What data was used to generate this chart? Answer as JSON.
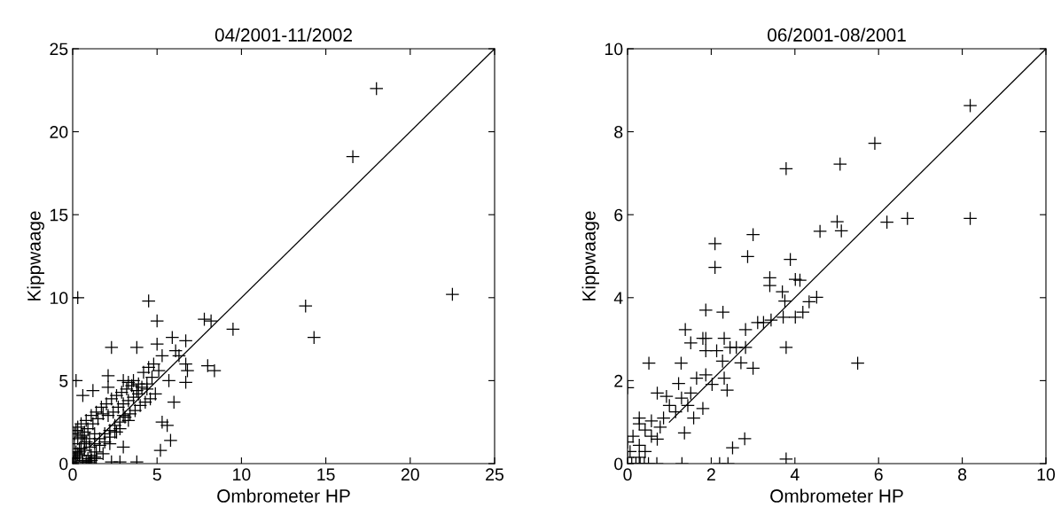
{
  "chart_data": [
    {
      "type": "scatter",
      "title": "04/2001-11/2002",
      "xlabel": "Ombrometer HP",
      "ylabel": "Kippwaage",
      "xlim": [
        0,
        25
      ],
      "ylim": [
        0,
        25
      ],
      "xticks": [
        0,
        5,
        10,
        15,
        20,
        25
      ],
      "yticks": [
        0,
        5,
        10,
        15,
        20,
        25
      ],
      "grid": false,
      "legend": false,
      "series": [
        {
          "marker": "cross",
          "color": "#000000",
          "x": [
            18,
            16.6,
            22.5,
            0.3,
            4.5,
            13.8,
            14.3,
            9.5,
            7.8,
            8.2,
            5,
            2.3,
            3.8,
            5,
            5.9,
            6.7,
            6.1,
            6.3,
            8,
            8.4,
            6.7,
            6.8,
            6.7,
            5.7,
            6,
            1.2,
            0.6,
            5.3,
            5.6,
            5.8,
            5.2,
            3.8,
            2.3,
            2.8,
            3.0,
            0.2,
            2.1,
            2.1,
            3.0,
            3.3,
            3.6,
            3.9,
            4.2,
            4.5,
            4.8,
            5.1,
            4.9,
            4.6,
            4.3,
            4.0,
            3.7,
            3.4,
            3.1,
            2.8,
            2.5,
            2.2,
            1.9,
            1.6,
            1.3,
            1.0,
            0.7,
            0.4,
            0.1,
            0.2,
            0.5,
            0.8,
            1.1,
            1.4,
            1.7,
            2.0,
            2.3,
            2.6,
            2.9,
            3.2,
            3.5,
            3.8,
            4.1,
            4.4,
            4.7,
            0.1,
            0.3,
            0.6,
            0.9,
            1.2,
            1.5,
            1.8,
            2.1,
            2.4,
            2.7,
            3.0,
            3.3,
            3.6,
            3.9,
            0.2,
            0.4,
            0.7,
            1.0,
            1.3,
            1.6,
            1.9,
            2.2,
            2.5,
            2.8,
            0.1,
            0.3,
            0.5,
            0.8,
            1.1,
            1.4,
            0.1,
            0.3,
            0.5,
            0.7,
            0.9,
            1.1,
            1.3,
            0.0,
            0.2,
            0.4,
            0.6,
            0.8,
            1.0,
            0.2,
            0.6,
            1.0,
            1.4,
            1.8,
            2.2,
            2.6,
            3.0,
            4.4,
            5.3,
            3.3
          ],
          "values": [
            22.6,
            18.5,
            10.2,
            10,
            9.8,
            9.5,
            7.6,
            8.1,
            8.7,
            8.6,
            8.6,
            7.0,
            7.0,
            7.2,
            7.6,
            7.4,
            6.8,
            6.5,
            5.9,
            5.6,
            6.0,
            5.6,
            4.9,
            5.0,
            3.7,
            4.4,
            4.1,
            2.5,
            2.3,
            1.4,
            0.8,
            0.1,
            0.1,
            0.1,
            2.9,
            5.0,
            4.6,
            5.3,
            5.0,
            4.9,
            5.0,
            4.8,
            5.5,
            5.8,
            6.0,
            5.6,
            4.2,
            3.9,
            3.7,
            3.5,
            3.2,
            3.0,
            2.8,
            2.5,
            2.3,
            2.0,
            1.8,
            1.5,
            1.2,
            1.0,
            0.8,
            0.5,
            0.3,
            2.0,
            2.4,
            2.6,
            2.9,
            3.1,
            3.4,
            3.6,
            3.9,
            4.1,
            4.3,
            4.5,
            4.7,
            4.4,
            4.6,
            4.8,
            5.2,
            1.2,
            1.5,
            1.7,
            2.1,
            2.4,
            2.7,
            3.0,
            2.9,
            3.1,
            3.4,
            3.6,
            3.8,
            4.0,
            4.2,
            0.7,
            0.9,
            1.2,
            1.5,
            1.8,
            1.1,
            1.3,
            1.6,
            1.9,
            2.1,
            0.4,
            0.6,
            0.9,
            1.3,
            0.5,
            0.7,
            1.8,
            2.2,
            1.6,
            1.9,
            0.3,
            0.2,
            0.4,
            0.1,
            0.4,
            0.7,
            0.2,
            0.1,
            0.0,
            0.0,
            0.1,
            0.1,
            0.3,
            0.6,
            1.2,
            1.9,
            1.0,
            4.5,
            6.5,
            2.6
          ]
        },
        {
          "type": "line",
          "color": "#000000",
          "x": [
            1,
            25
          ],
          "values": [
            1,
            25
          ]
        }
      ]
    },
    {
      "type": "scatter",
      "title": "06/2001-08/2001",
      "xlabel": "Ombrometer HP",
      "ylabel": "Kippwaage",
      "xlim": [
        0,
        10
      ],
      "ylim": [
        0,
        10
      ],
      "xticks": [
        0,
        2,
        4,
        6,
        8,
        10
      ],
      "yticks": [
        0,
        2,
        4,
        6,
        8,
        10
      ],
      "grid": false,
      "legend": false,
      "series": [
        {
          "marker": "cross",
          "color": "#000000",
          "x": [
            8.19,
            5.91,
            5.08,
            3.79,
            8.19,
            6.69,
            6.2,
            5.01,
            5.11,
            4.6,
            3.0,
            2.09,
            2.87,
            2.09,
            3.89,
            3.4,
            3.4,
            4.01,
            4.12,
            3.7,
            3.76,
            4.52,
            4.34,
            4.19,
            4.01,
            3.72,
            3.43,
            3.25,
            3.11,
            1.87,
            2.28,
            2.82,
            1.38,
            1.51,
            1.8,
            1.87,
            2.31,
            1.87,
            2.13,
            2.45,
            2.6,
            2.82,
            3.79,
            2.27,
            2.71,
            3.0,
            5.5,
            0.51,
            1.28,
            1.22,
            1.65,
            1.87,
            2.02,
            2.31,
            2.38,
            0.71,
            0.93,
            1.29,
            1.51,
            1.8,
            1.44,
            1.0,
            1.15,
            1.58,
            1.36,
            0.86,
            0.57,
            0.28,
            0.28,
            0.42,
            0.13,
            0.57,
            0.78,
            0.71,
            0.0,
            0.28,
            0.06,
            0.42,
            0.0,
            0.28,
            0.0,
            2.8,
            2.51,
            3.79,
            0.1,
            0.2,
            0.3,
            0.4,
            0.5,
            0.7,
            1.3,
            2.2,
            2.4
          ],
          "values": [
            8.63,
            7.72,
            7.22,
            7.11,
            5.91,
            5.91,
            5.82,
            5.83,
            5.61,
            5.6,
            5.52,
            5.3,
            4.99,
            4.73,
            4.92,
            4.48,
            4.29,
            4.44,
            4.42,
            4.14,
            3.92,
            4.01,
            3.9,
            3.65,
            3.53,
            3.53,
            3.46,
            3.4,
            3.4,
            3.7,
            3.65,
            3.23,
            3.23,
            2.91,
            3.02,
            3.02,
            3.02,
            2.72,
            2.72,
            2.8,
            2.8,
            2.8,
            2.8,
            2.47,
            2.43,
            2.3,
            2.42,
            2.42,
            2.42,
            1.93,
            2.06,
            2.14,
            1.91,
            2.06,
            1.77,
            1.7,
            1.62,
            1.58,
            1.7,
            1.33,
            1.4,
            1.4,
            1.25,
            1.1,
            0.74,
            1.1,
            1.03,
            1.1,
            0.96,
            0.81,
            0.66,
            0.66,
            0.88,
            0.59,
            0.52,
            0.44,
            0.29,
            0.29,
            0.15,
            0.15,
            1.83,
            0.6,
            0.38,
            0.11,
            0.0,
            0.0,
            0.0,
            0.0,
            0.0,
            0.0,
            0.0,
            0.0,
            0.0
          ]
        },
        {
          "type": "line",
          "color": "#000000",
          "x": [
            1,
            10
          ],
          "values": [
            1,
            10
          ]
        }
      ]
    }
  ]
}
